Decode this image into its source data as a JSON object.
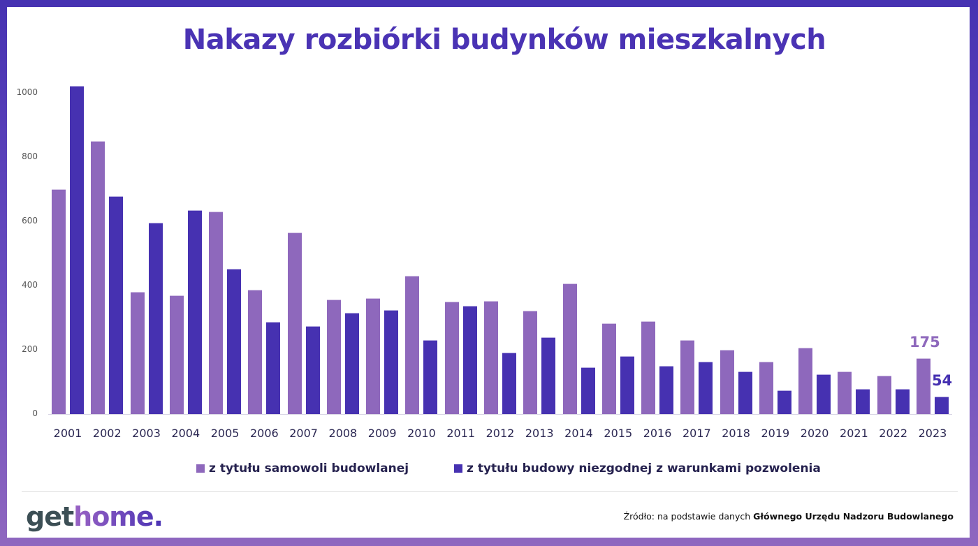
{
  "title": "Nakazy rozbiórki budynków mieszkalnych",
  "colors": {
    "series1": "#8e68bc",
    "series2": "#4631b1",
    "title": "#4a33b4",
    "text_dark": "#26224f"
  },
  "legend": [
    {
      "label": "z tytułu samowoli budowlanej",
      "color": "#8e68bc"
    },
    {
      "label": "z tytułu budowy niezgodnej z warunkami pozwolenia",
      "color": "#4631b1"
    }
  ],
  "annotations": {
    "last_series1": "175",
    "last_series2": "54"
  },
  "footer": {
    "logo_get": "get",
    "logo_home": "home.",
    "source_prefix": "Źródło: na podstawie danych ",
    "source_bold": "Głównego Urzędu Nadzoru Budowlanego"
  },
  "chart_data": {
    "type": "bar",
    "title": "Nakazy rozbiórki budynków mieszkalnych",
    "xlabel": "",
    "ylabel": "",
    "ylim": [
      0,
      1000
    ],
    "yticks": [
      0,
      200,
      400,
      600,
      800,
      1000
    ],
    "grid": false,
    "legend_position": "bottom",
    "categories": [
      "2001",
      "2002",
      "2003",
      "2004",
      "2005",
      "2006",
      "2007",
      "2008",
      "2009",
      "2010",
      "2011",
      "2012",
      "2013",
      "2014",
      "2015",
      "2016",
      "2017",
      "2018",
      "2019",
      "2020",
      "2021",
      "2022",
      "2023"
    ],
    "series": [
      {
        "name": "z tytułu samowoli budowlanej",
        "color": "#8e68bc",
        "values": [
          700,
          850,
          381,
          370,
          631,
          386,
          565,
          357,
          361,
          430,
          349,
          353,
          322,
          407,
          282,
          290,
          230,
          199,
          162,
          206,
          133,
          120,
          175
        ]
      },
      {
        "name": "z tytułu budowy niezgodnej z warunkami pozwolenia",
        "color": "#4631b1",
        "values": [
          1022,
          678,
          595,
          634,
          452,
          288,
          275,
          316,
          323,
          230,
          337,
          191,
          240,
          146,
          181,
          149,
          163,
          133,
          75,
          123,
          78,
          78,
          54
        ]
      }
    ],
    "annotations": [
      {
        "category": "2023",
        "series": 0,
        "text": "175"
      },
      {
        "category": "2023",
        "series": 1,
        "text": "54"
      }
    ]
  }
}
